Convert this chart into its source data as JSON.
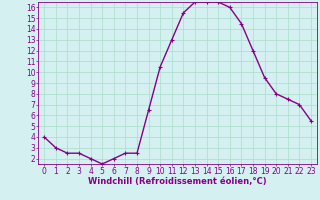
{
  "x": [
    0,
    1,
    2,
    3,
    4,
    5,
    6,
    7,
    8,
    9,
    10,
    11,
    12,
    13,
    14,
    15,
    16,
    17,
    18,
    19,
    20,
    21,
    22,
    23
  ],
  "y": [
    4.0,
    3.0,
    2.5,
    2.5,
    2.0,
    1.5,
    2.0,
    2.5,
    2.5,
    6.5,
    10.5,
    13.0,
    15.5,
    16.5,
    16.5,
    16.5,
    16.0,
    14.5,
    12.0,
    9.5,
    8.0,
    7.5,
    7.0,
    5.5
  ],
  "line_color": "#880088",
  "marker": "+",
  "markersize": 3,
  "linewidth": 1.0,
  "bg_color": "#d4f0f0",
  "grid_color": "#aaddcc",
  "xlabel": "Windchill (Refroidissement éolien,°C)",
  "xlabel_fontsize": 6.0,
  "tick_fontsize": 5.5,
  "xlim": [
    -0.5,
    23.5
  ],
  "ylim": [
    1.5,
    16.5
  ],
  "yticks": [
    2,
    3,
    4,
    5,
    6,
    7,
    8,
    9,
    10,
    11,
    12,
    13,
    14,
    15,
    16
  ],
  "xticks": [
    0,
    1,
    2,
    3,
    4,
    5,
    6,
    7,
    8,
    9,
    10,
    11,
    12,
    13,
    14,
    15,
    16,
    17,
    18,
    19,
    20,
    21,
    22,
    23
  ]
}
